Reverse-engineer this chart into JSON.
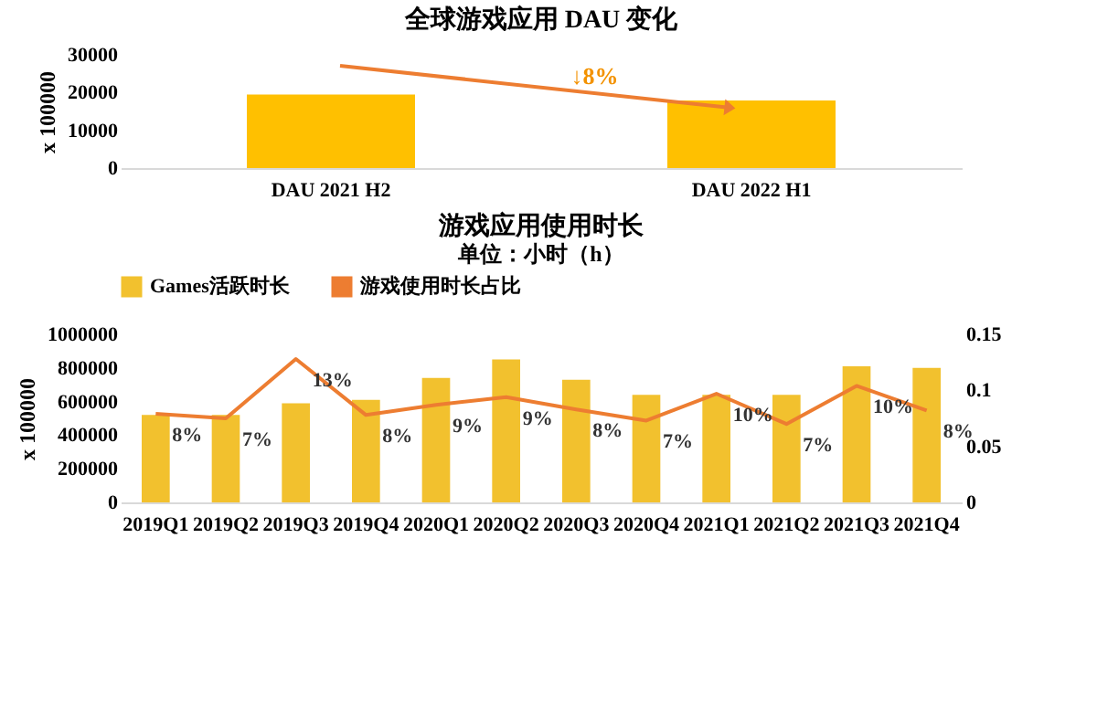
{
  "chart_data": [
    {
      "type": "bar",
      "title": "全球游戏应用 DAU 变化",
      "ylabel": "x 100000",
      "categories": [
        "DAU 2021 H2",
        "DAU 2022 H1"
      ],
      "values": [
        19500,
        17900
      ],
      "color": "#ffc000",
      "ylim": [
        0,
        30000
      ],
      "yticks": [
        0,
        10000,
        20000,
        30000
      ],
      "annotations": [
        "↓8%"
      ]
    },
    {
      "type": "bar",
      "title": "游戏应用使用时长",
      "subtitle": "单位：小时（h）",
      "ylabel": "x 100000",
      "categories": [
        "2019Q1",
        "2019Q2",
        "2019Q3",
        "2019Q4",
        "2020Q1",
        "2020Q2",
        "2020Q3",
        "2020Q4",
        "2021Q1",
        "2021Q2",
        "2021Q3",
        "2021Q4"
      ],
      "series": [
        {
          "name": "Games活跃时长",
          "color": "#f2c12e",
          "values": [
            520000,
            520000,
            590000,
            610000,
            740000,
            850000,
            730000,
            640000,
            640000,
            640000,
            810000,
            800000
          ]
        },
        {
          "name": "游戏使用时长占比",
          "type": "line",
          "axis": "y2",
          "color": "#ed7d31",
          "values": [
            0.079,
            0.075,
            0.128,
            0.078,
            0.087,
            0.094,
            0.083,
            0.073,
            0.097,
            0.07,
            0.104,
            0.082
          ],
          "value_labels": [
            "8%",
            "7%",
            "13%",
            "8%",
            "9%",
            "9%",
            "8%",
            "7%",
            "10%",
            "7%",
            "10%",
            "8%"
          ]
        }
      ],
      "ylim": [
        0,
        1000000
      ],
      "yticks": [
        0,
        200000,
        400000,
        600000,
        800000,
        1000000
      ],
      "y2lim": [
        0,
        0.15
      ],
      "y2ticks": [
        0,
        0.05,
        0.1,
        0.15
      ],
      "legend": "top"
    }
  ]
}
